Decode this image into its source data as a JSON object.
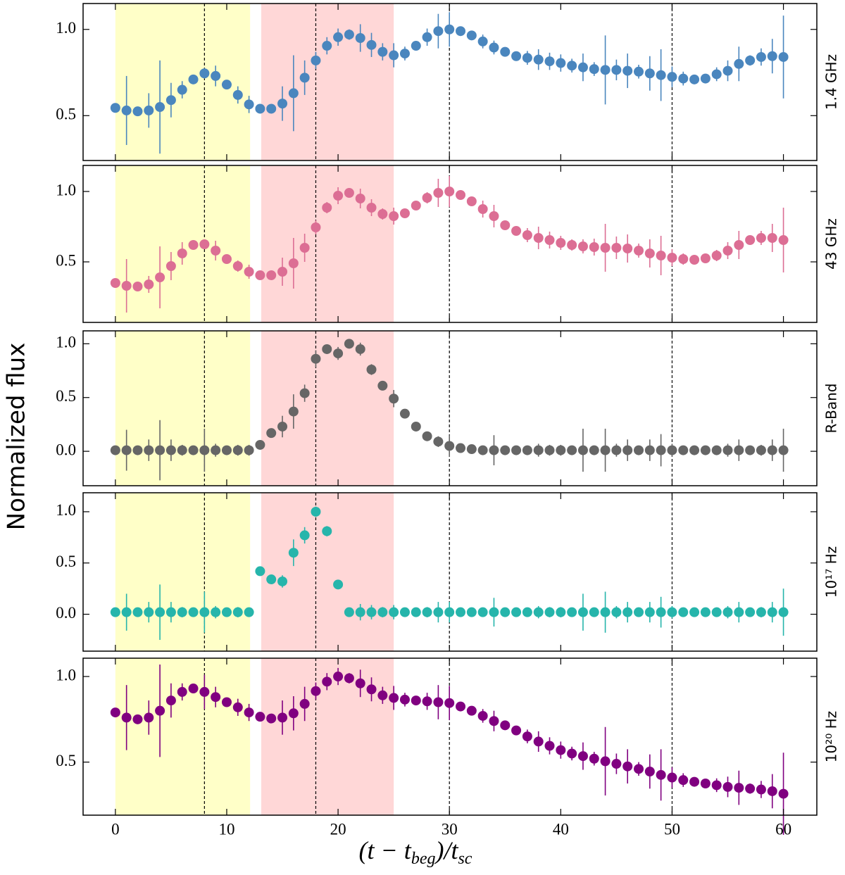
{
  "figure": {
    "ylabel": "Normalized flux",
    "xlabel": [
      "(t − t",
      "beg",
      ")/t",
      "sc"
    ]
  },
  "chart_data": [
    {
      "type": "errorbar",
      "label": "1.4 GHz",
      "color": "#4a86be",
      "x": [
        0,
        1,
        2,
        3,
        4,
        5,
        6,
        7,
        8,
        9,
        10,
        11,
        12,
        13,
        14,
        15,
        16,
        17,
        18,
        19,
        20,
        21,
        22,
        23,
        24,
        25,
        26,
        27,
        28,
        29,
        30,
        31,
        32,
        33,
        34,
        35,
        36,
        37,
        38,
        39,
        40,
        41,
        42,
        43,
        44,
        45,
        46,
        47,
        48,
        49,
        50,
        51,
        52,
        53,
        54,
        55,
        56,
        57,
        58,
        59,
        60
      ],
      "values": [
        0.545,
        0.53,
        0.525,
        0.53,
        0.55,
        0.59,
        0.65,
        0.71,
        0.745,
        0.73,
        0.68,
        0.62,
        0.565,
        0.54,
        0.54,
        0.57,
        0.63,
        0.72,
        0.82,
        0.905,
        0.955,
        0.97,
        0.95,
        0.91,
        0.87,
        0.85,
        0.86,
        0.905,
        0.955,
        0.99,
        1.0,
        0.99,
        0.965,
        0.93,
        0.895,
        0.87,
        0.845,
        0.835,
        0.825,
        0.815,
        0.805,
        0.79,
        0.78,
        0.77,
        0.765,
        0.765,
        0.76,
        0.755,
        0.745,
        0.735,
        0.725,
        0.715,
        0.71,
        0.715,
        0.74,
        0.76,
        0.8,
        0.82,
        0.84,
        0.845,
        0.84
      ],
      "errors": [
        0.01,
        0.2,
        0.02,
        0.1,
        0.27,
        0.1,
        0.05,
        0.02,
        0.03,
        0.06,
        0.02,
        0.05,
        0.05,
        0.02,
        0.02,
        0.1,
        0.22,
        0.1,
        0.05,
        0.05,
        0.05,
        0.03,
        0.08,
        0.07,
        0.05,
        0.07,
        0.04,
        0.02,
        0.05,
        0.1,
        0.1,
        0.02,
        0.02,
        0.04,
        0.04,
        0.02,
        0.02,
        0.04,
        0.06,
        0.05,
        0.05,
        0.04,
        0.08,
        0.04,
        0.2,
        0.06,
        0.1,
        0.04,
        0.1,
        0.15,
        0.06,
        0.04,
        0.02,
        0.02,
        0.04,
        0.06,
        0.1,
        0.03,
        0.05,
        0.1,
        0.24
      ],
      "xlim": [
        -2.9,
        63
      ],
      "xticks": [
        0,
        10,
        20,
        30,
        40,
        50,
        60
      ],
      "ylim": [
        0.24,
        1.15
      ],
      "yticks": [
        0.5,
        {
          "value": 1,
          "label": "1.0"
        }
      ],
      "spans": [
        {
          "x": [
            0,
            12.1
          ],
          "color": "#ffffc8"
        },
        {
          "x": [
            13.1,
            25
          ],
          "color": "#ffd7d7"
        }
      ],
      "vlines": [
        8,
        18,
        30,
        50
      ]
    },
    {
      "type": "errorbar",
      "label": "43 GHz",
      "color": "#dc6e94",
      "x": [
        0,
        1,
        2,
        3,
        4,
        5,
        6,
        7,
        8,
        9,
        10,
        11,
        12,
        13,
        14,
        15,
        16,
        17,
        18,
        19,
        20,
        21,
        22,
        23,
        24,
        25,
        26,
        27,
        28,
        29,
        30,
        31,
        32,
        33,
        34,
        35,
        36,
        37,
        38,
        39,
        40,
        41,
        42,
        43,
        44,
        45,
        46,
        47,
        48,
        49,
        50,
        51,
        52,
        53,
        54,
        55,
        56,
        57,
        58,
        59,
        60
      ],
      "values": [
        0.35,
        0.33,
        0.325,
        0.34,
        0.39,
        0.47,
        0.56,
        0.62,
        0.625,
        0.58,
        0.52,
        0.47,
        0.43,
        0.405,
        0.405,
        0.43,
        0.49,
        0.6,
        0.745,
        0.885,
        0.97,
        0.99,
        0.95,
        0.885,
        0.84,
        0.825,
        0.845,
        0.9,
        0.955,
        0.99,
        1.0,
        0.975,
        0.93,
        0.875,
        0.825,
        0.76,
        0.72,
        0.69,
        0.67,
        0.655,
        0.635,
        0.62,
        0.61,
        0.605,
        0.6,
        0.6,
        0.595,
        0.58,
        0.56,
        0.545,
        0.53,
        0.52,
        0.515,
        0.525,
        0.545,
        0.58,
        0.62,
        0.655,
        0.67,
        0.67,
        0.655
      ],
      "errors": [
        0.01,
        0.19,
        0.02,
        0.06,
        0.22,
        0.1,
        0.08,
        0.03,
        0.03,
        0.07,
        0.03,
        0.04,
        0.05,
        0.02,
        0.03,
        0.1,
        0.18,
        0.1,
        0.05,
        0.04,
        0.06,
        0.03,
        0.07,
        0.06,
        0.04,
        0.06,
        0.03,
        0.02,
        0.04,
        0.1,
        0.11,
        0.02,
        0.02,
        0.06,
        0.08,
        0.02,
        0.02,
        0.05,
        0.08,
        0.06,
        0.05,
        0.04,
        0.05,
        0.06,
        0.17,
        0.08,
        0.1,
        0.05,
        0.1,
        0.14,
        0.06,
        0.04,
        0.02,
        0.02,
        0.04,
        0.06,
        0.1,
        0.03,
        0.05,
        0.1,
        0.23
      ],
      "xlim": [
        -2.9,
        63
      ],
      "xticks": [
        0,
        10,
        20,
        30,
        40,
        50,
        60
      ],
      "ylim": [
        0.07,
        1.185
      ],
      "yticks": [
        0.5,
        {
          "value": 1,
          "label": "1.0"
        }
      ],
      "spans": [
        {
          "x": [
            0,
            12.1
          ],
          "color": "#ffffc8"
        },
        {
          "x": [
            13.1,
            25
          ],
          "color": "#ffd7d7"
        }
      ],
      "vlines": [
        8,
        18,
        30,
        50
      ]
    },
    {
      "type": "errorbar",
      "label": "R-Band",
      "color": "#666666",
      "x": [
        0,
        1,
        2,
        3,
        4,
        5,
        6,
        7,
        8,
        9,
        10,
        11,
        12,
        13,
        14,
        15,
        16,
        17,
        18,
        19,
        20,
        21,
        22,
        23,
        24,
        25,
        26,
        27,
        28,
        29,
        30,
        31,
        32,
        33,
        34,
        35,
        36,
        37,
        38,
        39,
        40,
        41,
        42,
        43,
        44,
        45,
        46,
        47,
        48,
        49,
        50,
        51,
        52,
        53,
        54,
        55,
        56,
        57,
        58,
        59,
        60
      ],
      "values": [
        0.01,
        0.01,
        0.01,
        0.01,
        0.01,
        0.01,
        0.01,
        0.01,
        0.01,
        0.01,
        0.01,
        0.01,
        0.01,
        0.06,
        0.17,
        0.23,
        0.37,
        0.54,
        0.86,
        0.95,
        0.91,
        1.0,
        0.95,
        0.76,
        0.61,
        0.49,
        0.35,
        0.23,
        0.14,
        0.09,
        0.05,
        0.03,
        0.02,
        0.01,
        0.01,
        0.01,
        0.01,
        0.01,
        0.01,
        0.01,
        0.01,
        0.01,
        0.01,
        0.01,
        0.01,
        0.01,
        0.01,
        0.01,
        0.01,
        0.01,
        0.01,
        0.01,
        0.01,
        0.01,
        0.01,
        0.01,
        0.01,
        0.01,
        0.01,
        0.01,
        0.01
      ],
      "errors": [
        0.01,
        0.19,
        0.02,
        0.1,
        0.28,
        0.1,
        0.05,
        0.02,
        0.2,
        0.06,
        0.02,
        0.05,
        0.05,
        0.02,
        0.02,
        0.1,
        0.16,
        0.08,
        0.08,
        0.04,
        0.06,
        0.03,
        0.06,
        0.05,
        0.03,
        0.08,
        0.02,
        0.02,
        0.03,
        0.05,
        0.1,
        0.02,
        0.02,
        0.04,
        0.14,
        0.02,
        0.02,
        0.04,
        0.06,
        0.05,
        0.05,
        0.04,
        0.2,
        0.04,
        0.2,
        0.06,
        0.1,
        0.04,
        0.1,
        0.15,
        0.06,
        0.04,
        0.02,
        0.02,
        0.04,
        0.06,
        0.1,
        0.03,
        0.05,
        0.1,
        0.2
      ],
      "xlim": [
        -2.9,
        63
      ],
      "xticks": [
        0,
        10,
        20,
        30,
        40,
        50,
        60
      ],
      "ylim": [
        -0.32,
        1.12
      ],
      "yticks": [
        {
          "value": 0,
          "label": "0.0"
        },
        0.5,
        {
          "value": 1,
          "label": "1.0"
        }
      ],
      "spans": [
        {
          "x": [
            0,
            12.1
          ],
          "color": "#ffffc8"
        },
        {
          "x": [
            13.1,
            25
          ],
          "color": "#ffd7d7"
        }
      ],
      "vlines": [
        8,
        18,
        30,
        50
      ]
    },
    {
      "type": "errorbar",
      "label": "10¹⁷ Hz",
      "color": "#26b5ab",
      "x": [
        0,
        1,
        2,
        3,
        4,
        5,
        6,
        7,
        8,
        9,
        10,
        11,
        12,
        13,
        14,
        15,
        16,
        17,
        18,
        19,
        20,
        21,
        22,
        23,
        24,
        25,
        26,
        27,
        28,
        29,
        30,
        31,
        32,
        33,
        34,
        35,
        36,
        37,
        38,
        39,
        40,
        41,
        42,
        43,
        44,
        45,
        46,
        47,
        48,
        49,
        50,
        51,
        52,
        53,
        54,
        55,
        56,
        57,
        58,
        59,
        60
      ],
      "values": [
        0.02,
        0.02,
        0.02,
        0.02,
        0.02,
        0.02,
        0.02,
        0.02,
        0.02,
        0.02,
        0.02,
        0.02,
        0.02,
        0.42,
        0.34,
        0.32,
        0.6,
        0.77,
        1.0,
        0.81,
        0.29,
        0.02,
        0.02,
        0.02,
        0.02,
        0.02,
        0.02,
        0.02,
        0.02,
        0.02,
        0.02,
        0.02,
        0.02,
        0.02,
        0.02,
        0.02,
        0.02,
        0.02,
        0.02,
        0.02,
        0.02,
        0.02,
        0.02,
        0.02,
        0.02,
        0.02,
        0.02,
        0.02,
        0.02,
        0.02,
        0.02,
        0.02,
        0.02,
        0.02,
        0.02,
        0.02,
        0.02,
        0.02,
        0.02,
        0.02,
        0.02
      ],
      "errors": [
        0.01,
        0.18,
        0.02,
        0.1,
        0.27,
        0.1,
        0.05,
        0.02,
        0.2,
        0.06,
        0.02,
        0.05,
        0.02,
        0.04,
        0.02,
        0.06,
        0.13,
        0.08,
        0.05,
        0.05,
        0.03,
        0.02,
        0.08,
        0.07,
        0.05,
        0.07,
        0.04,
        0.02,
        0.05,
        0.1,
        0.1,
        0.02,
        0.02,
        0.04,
        0.14,
        0.02,
        0.02,
        0.04,
        0.06,
        0.05,
        0.05,
        0.04,
        0.18,
        0.04,
        0.2,
        0.06,
        0.1,
        0.04,
        0.1,
        0.15,
        0.06,
        0.04,
        0.02,
        0.02,
        0.04,
        0.06,
        0.1,
        0.03,
        0.05,
        0.1,
        0.23
      ],
      "xlim": [
        -2.9,
        63
      ],
      "xticks": [
        0,
        10,
        20,
        30,
        40,
        50,
        60
      ],
      "ylim": [
        -0.36,
        1.185
      ],
      "yticks": [
        {
          "value": 0,
          "label": "0.0"
        },
        0.5,
        {
          "value": 1,
          "label": "1.0"
        }
      ],
      "spans": [
        {
          "x": [
            0,
            12.1
          ],
          "color": "#ffffc8"
        },
        {
          "x": [
            13.1,
            25
          ],
          "color": "#ffd7d7"
        }
      ],
      "vlines": [
        8,
        18,
        30,
        50
      ]
    },
    {
      "type": "errorbar",
      "label": "10²⁰ Hz",
      "color": "#800080",
      "x": [
        0,
        1,
        2,
        3,
        4,
        5,
        6,
        7,
        8,
        9,
        10,
        11,
        12,
        13,
        14,
        15,
        16,
        17,
        18,
        19,
        20,
        21,
        22,
        23,
        24,
        25,
        26,
        27,
        28,
        29,
        30,
        31,
        32,
        33,
        34,
        35,
        36,
        37,
        38,
        39,
        40,
        41,
        42,
        43,
        44,
        45,
        46,
        47,
        48,
        49,
        50,
        51,
        52,
        53,
        54,
        55,
        56,
        57,
        58,
        59,
        60
      ],
      "values": [
        0.79,
        0.76,
        0.75,
        0.76,
        0.8,
        0.86,
        0.91,
        0.93,
        0.91,
        0.88,
        0.85,
        0.82,
        0.79,
        0.765,
        0.755,
        0.76,
        0.785,
        0.84,
        0.915,
        0.97,
        1.0,
        0.99,
        0.96,
        0.925,
        0.89,
        0.875,
        0.865,
        0.86,
        0.855,
        0.85,
        0.845,
        0.825,
        0.8,
        0.77,
        0.74,
        0.715,
        0.685,
        0.65,
        0.62,
        0.595,
        0.57,
        0.55,
        0.535,
        0.52,
        0.505,
        0.49,
        0.475,
        0.46,
        0.445,
        0.425,
        0.41,
        0.395,
        0.385,
        0.375,
        0.365,
        0.355,
        0.35,
        0.345,
        0.34,
        0.33,
        0.315
      ],
      "errors": [
        0.01,
        0.19,
        0.02,
        0.1,
        0.27,
        0.1,
        0.05,
        0.02,
        0.1,
        0.06,
        0.02,
        0.05,
        0.05,
        0.02,
        0.02,
        0.1,
        0.1,
        0.1,
        0.05,
        0.05,
        0.05,
        0.03,
        0.08,
        0.07,
        0.05,
        0.07,
        0.04,
        0.02,
        0.05,
        0.1,
        0.1,
        0.02,
        0.02,
        0.04,
        0.06,
        0.02,
        0.02,
        0.04,
        0.06,
        0.05,
        0.05,
        0.04,
        0.08,
        0.04,
        0.2,
        0.06,
        0.1,
        0.04,
        0.1,
        0.15,
        0.06,
        0.04,
        0.02,
        0.02,
        0.04,
        0.06,
        0.1,
        0.03,
        0.05,
        0.1,
        0.24
      ],
      "xlim": [
        -2.9,
        63
      ],
      "xticks": [
        0,
        10,
        20,
        30,
        40,
        50,
        60
      ],
      "ylim": [
        0.19,
        1.107
      ],
      "yticks": [
        0.5,
        {
          "value": 1,
          "label": "1.0"
        }
      ],
      "spans": [
        {
          "x": [
            0,
            12.1
          ],
          "color": "#ffffc8"
        },
        {
          "x": [
            13.1,
            25
          ],
          "color": "#ffd7d7"
        }
      ],
      "vlines": [
        8,
        18,
        30,
        50
      ]
    }
  ]
}
